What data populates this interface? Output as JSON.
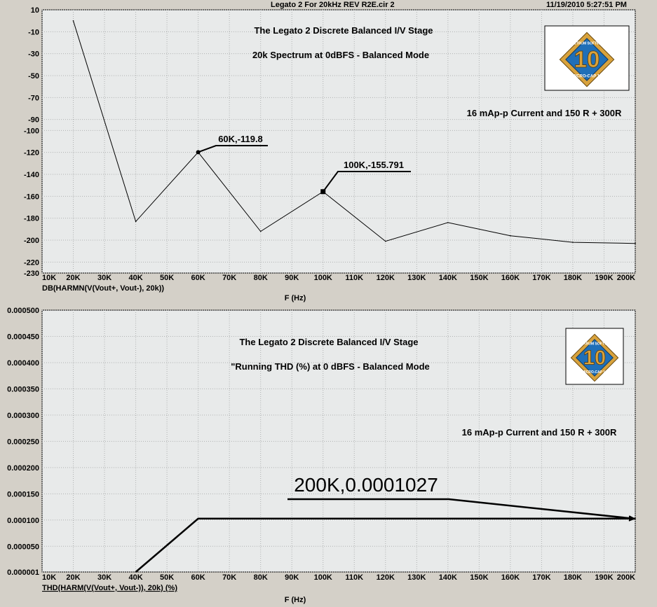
{
  "header": {
    "title": "Legato 2 For 20kHz REV R2E.cir 2",
    "datetime": "11/19/2010 5:27:51 PM"
  },
  "colors": {
    "window_bg": "#d4d0c8",
    "plot_bg": "#e8eaea",
    "grid": "#b0b2b2",
    "trace": "#000000",
    "logo_blue": "#1f6fb8",
    "logo_gold": "#d8a23c"
  },
  "chart_data": [
    {
      "type": "line",
      "title": "The Legato 2 Discrete Balanced I/V Stage",
      "subtitle": "20k Spectrum at 0dBFS - Balanced Mode",
      "note": "16 mAp-p Current and 150 R + 300R",
      "xlabel": "F (Hz)",
      "ylabel": "DB(HARMN(V(Vout+, Vout-), 20k))",
      "xlim": [
        10000,
        200000
      ],
      "ylim": [
        -230,
        10
      ],
      "x_tick_labels": [
        "10K",
        "20K",
        "30K",
        "40K",
        "50K",
        "60K",
        "70K",
        "80K",
        "90K",
        "100K",
        "110K",
        "120K",
        "130K",
        "140K",
        "150K",
        "160K",
        "170K",
        "180K",
        "190K",
        "200K"
      ],
      "y_tick_labels": [
        "10",
        "-10",
        "-30",
        "-50",
        "-70",
        "-90",
        "-100",
        "-120",
        "-140",
        "-160",
        "-180",
        "-200",
        "-220",
        "-230"
      ],
      "y_tick_values": [
        10,
        -10,
        -30,
        -50,
        -70,
        -90,
        -100,
        -120,
        -140,
        -160,
        -180,
        -200,
        -220,
        -230
      ],
      "series": [
        {
          "x": [
            20000,
            40000,
            60000,
            80000,
            100000,
            120000,
            140000,
            160000,
            180000,
            200000
          ],
          "y": [
            0,
            -183,
            -119.8,
            -192,
            -155.791,
            -201,
            -184,
            -196,
            -202,
            -203
          ]
        }
      ],
      "annotations": [
        {
          "label": "60K,-119.8",
          "x": 60000,
          "y": -119.8
        },
        {
          "label": "100K,-155.791",
          "x": 100000,
          "y": -155.791
        }
      ],
      "logo": {
        "top": "SPECTRUM SOFTWARE",
        "number": "10",
        "bottom": "MICRO-CAP 10"
      },
      "grid": true
    },
    {
      "type": "line",
      "title": "The Legato 2 Discrete Balanced I/V Stage",
      "subtitle": "\"Running THD (%) at 0 dBFS - Balanced Mode",
      "note": "16 mAp-p Current and 150 R + 300R",
      "xlabel": "F (Hz)",
      "ylabel": "THD(HARM(V(Vout+, Vout-)), 20k) (%)",
      "xlim": [
        10000,
        200000
      ],
      "ylim": [
        1e-06,
        0.0005
      ],
      "x_tick_labels": [
        "10K",
        "20K",
        "30K",
        "40K",
        "50K",
        "60K",
        "70K",
        "80K",
        "90K",
        "100K",
        "110K",
        "120K",
        "130K",
        "140K",
        "150K",
        "160K",
        "170K",
        "180K",
        "190K",
        "200K"
      ],
      "y_tick_labels": [
        "0.000500",
        "0.000450",
        "0.000400",
        "0.000350",
        "0.000300",
        "0.000250",
        "0.000200",
        "0.000150",
        "0.000100",
        "0.000050",
        "0.000001"
      ],
      "y_tick_values": [
        0.0005,
        0.00045,
        0.0004,
        0.00035,
        0.0003,
        0.00025,
        0.0002,
        0.00015,
        0.0001,
        5e-05,
        1e-06
      ],
      "series": [
        {
          "x": [
            40000,
            60000,
            80000,
            100000,
            120000,
            140000,
            160000,
            180000,
            200000
          ],
          "y": [
            1e-06,
            0.0001027,
            0.0001027,
            0.0001027,
            0.0001027,
            0.0001027,
            0.0001027,
            0.0001027,
            0.0001027
          ]
        }
      ],
      "annotations": [
        {
          "label": "200K,0.0001027",
          "x": 200000,
          "y": 0.0001027
        }
      ],
      "logo": {
        "top": "SPECTRUM SOFTWARE",
        "number": "10",
        "bottom": "MICRO-CAP 10"
      },
      "grid": true
    }
  ]
}
